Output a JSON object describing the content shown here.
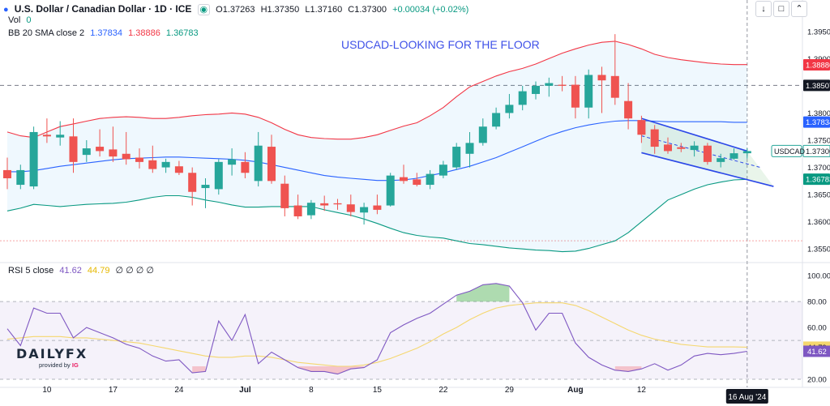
{
  "header": {
    "symbol_title": "U.S. Dollar / Canadian Dollar · 1D · ICE",
    "ohlc": {
      "o": "O1.37263",
      "h": "H1.37350",
      "l": "L1.37160",
      "c": "C1.37300",
      "chg": "+0.00034 (+0.02%)"
    },
    "vol_label": "Vol",
    "vol_value": "0",
    "bb_label": "BB 20 SMA close 2",
    "bb_basis": "1.37834",
    "bb_upper": "1.38886",
    "bb_lower": "1.36783",
    "rsi_label": "RSI 5 close",
    "rsi_value": "41.62",
    "rsi_ma": "44.79",
    "rsi_extra": "∅ ∅ ∅ ∅"
  },
  "annotation": "USDCAD-LOOKING FOR THE FLOOR",
  "symbol_tag": "USDCAD",
  "logo": {
    "main": "DAILYFX",
    "sub_prefix": "provided by",
    "sub_brand": "IG"
  },
  "chart_data": {
    "type": "candlestick",
    "x_tick_labels": [
      "10",
      "17",
      "24",
      "Jul",
      "8",
      "15",
      "22",
      "29",
      "Aug",
      "12"
    ],
    "x_current_label": "16 Aug '24",
    "price_axis_ticks": [
      "1.39500",
      "1.39000",
      "1.38500",
      "1.38000",
      "1.37500",
      "1.37000",
      "1.36500",
      "1.36000",
      "1.35500"
    ],
    "price_ylim": [
      1.3528,
      1.3975
    ],
    "price_labels": {
      "upper": "1.38886",
      "dashed_level": "1.38507",
      "basis": "1.37834",
      "last": "1.37300",
      "lower": "1.36783"
    },
    "dashed_levels": [
      1.38507,
      1.3565
    ],
    "candles": [
      {
        "o": 1.3695,
        "h": 1.3718,
        "l": 1.366,
        "c": 1.368
      },
      {
        "o": 1.3668,
        "h": 1.3705,
        "l": 1.366,
        "c": 1.3695
      },
      {
        "o": 1.3665,
        "h": 1.3775,
        "l": 1.366,
        "c": 1.3765
      },
      {
        "o": 1.376,
        "h": 1.379,
        "l": 1.3745,
        "c": 1.3757
      },
      {
        "o": 1.3755,
        "h": 1.3785,
        "l": 1.374,
        "c": 1.376
      },
      {
        "o": 1.3757,
        "h": 1.379,
        "l": 1.369,
        "c": 1.371
      },
      {
        "o": 1.3723,
        "h": 1.375,
        "l": 1.371,
        "c": 1.3735
      },
      {
        "o": 1.3738,
        "h": 1.377,
        "l": 1.372,
        "c": 1.373
      },
      {
        "o": 1.3733,
        "h": 1.3775,
        "l": 1.371,
        "c": 1.372
      },
      {
        "o": 1.3725,
        "h": 1.3765,
        "l": 1.3705,
        "c": 1.3715
      },
      {
        "o": 1.3718,
        "h": 1.3735,
        "l": 1.3698,
        "c": 1.371
      },
      {
        "o": 1.3713,
        "h": 1.374,
        "l": 1.369,
        "c": 1.3697
      },
      {
        "o": 1.37,
        "h": 1.3716,
        "l": 1.369,
        "c": 1.371
      },
      {
        "o": 1.3702,
        "h": 1.3712,
        "l": 1.3686,
        "c": 1.369
      },
      {
        "o": 1.369,
        "h": 1.37,
        "l": 1.363,
        "c": 1.3655
      },
      {
        "o": 1.3662,
        "h": 1.368,
        "l": 1.3625,
        "c": 1.3668
      },
      {
        "o": 1.366,
        "h": 1.3715,
        "l": 1.365,
        "c": 1.371
      },
      {
        "o": 1.3705,
        "h": 1.3735,
        "l": 1.3685,
        "c": 1.3715
      },
      {
        "o": 1.371,
        "h": 1.3728,
        "l": 1.368,
        "c": 1.369
      },
      {
        "o": 1.3675,
        "h": 1.3765,
        "l": 1.3665,
        "c": 1.374
      },
      {
        "o": 1.3738,
        "h": 1.376,
        "l": 1.367,
        "c": 1.3675
      },
      {
        "o": 1.367,
        "h": 1.3685,
        "l": 1.361,
        "c": 1.3625
      },
      {
        "o": 1.363,
        "h": 1.365,
        "l": 1.3605,
        "c": 1.361
      },
      {
        "o": 1.3612,
        "h": 1.364,
        "l": 1.3605,
        "c": 1.3635
      },
      {
        "o": 1.3634,
        "h": 1.3648,
        "l": 1.362,
        "c": 1.363
      },
      {
        "o": 1.3634,
        "h": 1.3642,
        "l": 1.3622,
        "c": 1.3632
      },
      {
        "o": 1.3632,
        "h": 1.365,
        "l": 1.361,
        "c": 1.3618
      },
      {
        "o": 1.3617,
        "h": 1.3635,
        "l": 1.3595,
        "c": 1.3627
      },
      {
        "o": 1.363,
        "h": 1.365,
        "l": 1.3614,
        "c": 1.3622
      },
      {
        "o": 1.363,
        "h": 1.369,
        "l": 1.3628,
        "c": 1.3685
      },
      {
        "o": 1.3682,
        "h": 1.3705,
        "l": 1.367,
        "c": 1.3675
      },
      {
        "o": 1.3678,
        "h": 1.369,
        "l": 1.3665,
        "c": 1.3668
      },
      {
        "o": 1.3668,
        "h": 1.3695,
        "l": 1.366,
        "c": 1.3688
      },
      {
        "o": 1.3685,
        "h": 1.3712,
        "l": 1.368,
        "c": 1.3705
      },
      {
        "o": 1.37,
        "h": 1.3745,
        "l": 1.3695,
        "c": 1.3738
      },
      {
        "o": 1.3725,
        "h": 1.3765,
        "l": 1.37,
        "c": 1.3745
      },
      {
        "o": 1.3745,
        "h": 1.379,
        "l": 1.374,
        "c": 1.3775
      },
      {
        "o": 1.3775,
        "h": 1.381,
        "l": 1.377,
        "c": 1.38
      },
      {
        "o": 1.38,
        "h": 1.3835,
        "l": 1.379,
        "c": 1.3815
      },
      {
        "o": 1.3815,
        "h": 1.385,
        "l": 1.3805,
        "c": 1.384
      },
      {
        "o": 1.3835,
        "h": 1.3858,
        "l": 1.3825,
        "c": 1.385
      },
      {
        "o": 1.385,
        "h": 1.3865,
        "l": 1.383,
        "c": 1.3855
      },
      {
        "o": 1.3852,
        "h": 1.3868,
        "l": 1.384,
        "c": 1.385
      },
      {
        "o": 1.3852,
        "h": 1.3868,
        "l": 1.379,
        "c": 1.381
      },
      {
        "o": 1.381,
        "h": 1.388,
        "l": 1.379,
        "c": 1.387
      },
      {
        "o": 1.387,
        "h": 1.3885,
        "l": 1.38,
        "c": 1.386
      },
      {
        "o": 1.3868,
        "h": 1.3945,
        "l": 1.3815,
        "c": 1.3828
      },
      {
        "o": 1.3822,
        "h": 1.3855,
        "l": 1.377,
        "c": 1.379
      },
      {
        "o": 1.3787,
        "h": 1.3795,
        "l": 1.3745,
        "c": 1.376
      },
      {
        "o": 1.377,
        "h": 1.3778,
        "l": 1.3725,
        "c": 1.3738
      },
      {
        "o": 1.3742,
        "h": 1.3755,
        "l": 1.3725,
        "c": 1.373
      },
      {
        "o": 1.3737,
        "h": 1.3745,
        "l": 1.3728,
        "c": 1.3734
      },
      {
        "o": 1.3732,
        "h": 1.3748,
        "l": 1.372,
        "c": 1.374
      },
      {
        "o": 1.374,
        "h": 1.3745,
        "l": 1.3705,
        "c": 1.371
      },
      {
        "o": 1.371,
        "h": 1.3725,
        "l": 1.37,
        "c": 1.3717
      },
      {
        "o": 1.3716,
        "h": 1.3735,
        "l": 1.3714,
        "c": 1.3726
      },
      {
        "o": 1.3726,
        "h": 1.3735,
        "l": 1.3716,
        "c": 1.373
      }
    ],
    "bb_upper": [
      1.3765,
      1.3758,
      1.3755,
      1.3765,
      1.3775,
      1.378,
      1.3785,
      1.379,
      1.3792,
      1.3793,
      1.3792,
      1.379,
      1.379,
      1.3792,
      1.3795,
      1.3797,
      1.3798,
      1.38,
      1.3798,
      1.3792,
      1.3782,
      1.377,
      1.376,
      1.3755,
      1.3753,
      1.3752,
      1.3752,
      1.3755,
      1.376,
      1.3768,
      1.3776,
      1.3782,
      1.3795,
      1.381,
      1.383,
      1.3848,
      1.3858,
      1.3868,
      1.3876,
      1.3882,
      1.389,
      1.39,
      1.391,
      1.3918,
      1.3925,
      1.393,
      1.3932,
      1.3926,
      1.3918,
      1.3908,
      1.3902,
      1.3898,
      1.3895,
      1.3892,
      1.389,
      1.3889,
      1.3889
    ],
    "bb_basis": [
      1.3692,
      1.3692,
      1.3694,
      1.3698,
      1.3702,
      1.3705,
      1.3708,
      1.3711,
      1.3714,
      1.3716,
      1.3717,
      1.3718,
      1.3719,
      1.3719,
      1.3718,
      1.3717,
      1.3716,
      1.3715,
      1.3713,
      1.371,
      1.3705,
      1.37,
      1.3695,
      1.369,
      1.3685,
      1.3682,
      1.368,
      1.3678,
      1.3676,
      1.3676,
      1.3677,
      1.368,
      1.3685,
      1.369,
      1.3696,
      1.3702,
      1.371,
      1.3718,
      1.3728,
      1.3738,
      1.3748,
      1.3758,
      1.3766,
      1.3773,
      1.3778,
      1.3782,
      1.3785,
      1.3786,
      1.3786,
      1.3785,
      1.3784,
      1.3784,
      1.3784,
      1.3784,
      1.3784,
      1.3783,
      1.3783
    ],
    "bb_lower": [
      1.362,
      1.3625,
      1.3632,
      1.363,
      1.3628,
      1.363,
      1.3632,
      1.3633,
      1.3634,
      1.3636,
      1.364,
      1.3645,
      1.3648,
      1.3648,
      1.3645,
      1.364,
      1.3636,
      1.3631,
      1.3627,
      1.3627,
      1.3628,
      1.3628,
      1.3628,
      1.3628,
      1.3622,
      1.3617,
      1.3612,
      1.3605,
      1.3597,
      1.3588,
      1.358,
      1.3575,
      1.3572,
      1.357,
      1.3565,
      1.356,
      1.3558,
      1.3555,
      1.3552,
      1.355,
      1.3548,
      1.3547,
      1.3545,
      1.3546,
      1.3551,
      1.3558,
      1.3565,
      1.358,
      1.36,
      1.362,
      1.364,
      1.365,
      1.366,
      1.3668,
      1.3673,
      1.3677,
      1.3678
    ],
    "channel": {
      "upper": [
        {
          "i": 48,
          "p": 1.379
        },
        {
          "i": 56,
          "p": 1.373
        }
      ],
      "lower": [
        {
          "i": 48,
          "p": 1.3727
        },
        {
          "i": 58,
          "p": 1.3665
        }
      ],
      "mid": [
        {
          "i": 48,
          "p": 1.3758
        },
        {
          "i": 57,
          "p": 1.37
        }
      ]
    },
    "rsi_axis_ticks": [
      "100.00",
      "80.00",
      "60.00",
      "40.00",
      "20.00"
    ],
    "rsi_ylim": [
      15,
      102
    ],
    "rsi_labels": {
      "rsi": "41.62",
      "ma": "44.79"
    },
    "rsi": [
      59,
      46,
      75,
      71,
      71,
      52,
      60,
      56,
      52,
      47,
      44,
      38,
      34,
      35,
      25,
      26,
      65,
      50,
      70,
      32,
      41,
      35,
      29,
      26,
      26,
      24,
      28,
      29,
      35,
      56,
      62,
      67,
      71,
      78,
      85,
      88,
      93,
      94,
      92,
      79,
      58,
      71,
      71,
      48,
      37,
      31,
      27,
      26,
      28,
      32,
      27,
      31,
      38,
      40,
      39,
      40,
      41.6
    ],
    "rsi_ma": [
      51,
      52,
      53,
      53,
      53,
      52,
      52,
      51,
      50,
      49,
      48,
      46,
      44,
      42,
      40,
      38,
      37,
      37,
      38,
      38,
      37,
      35,
      33,
      32,
      31,
      30,
      30,
      31,
      33,
      36,
      40,
      44,
      49,
      55,
      60,
      66,
      71,
      75,
      77,
      78,
      79,
      79,
      79,
      77,
      73,
      68,
      63,
      58,
      54,
      51,
      49,
      47,
      46,
      45,
      45,
      45,
      44.8
    ]
  }
}
